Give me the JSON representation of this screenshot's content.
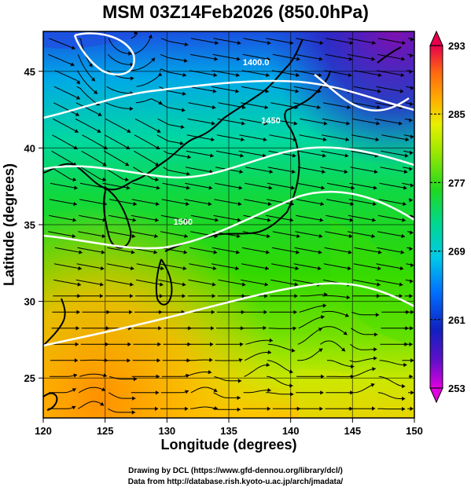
{
  "title": "MSM 03Z14Feb2026 (850.0hPa)",
  "xlabel": "Longitude (degrees)",
  "ylabel": "Latitude  (degrees)",
  "credits": {
    "line1": "Drawing by DCL (https://www.gfd-dennou.org/library/dcl/)",
    "line2": "Data from http://database.rish.kyoto-u.ac.jp/arch/jmadata/"
  },
  "chart_data": {
    "type": "heatmap",
    "title": "MSM 03Z14Feb2026 (850.0hPa)",
    "xlabel": "Longitude (degrees)",
    "ylabel": "Latitude  (degrees)",
    "xlim": [
      120,
      150
    ],
    "ylim": [
      22.4,
      47.6
    ],
    "x_ticks": [
      "120",
      "125",
      "130",
      "135",
      "140",
      "145",
      "150"
    ],
    "y_ticks": [
      "25",
      "30",
      "35",
      "40",
      "45"
    ],
    "colorbar": {
      "range": [
        253,
        293
      ],
      "labels": [
        "293",
        "285",
        "277",
        "269",
        "261",
        "253"
      ],
      "colors": [
        "#e8004c",
        "#ff4a1a",
        "#ff9a00",
        "#f0e000",
        "#5fe000",
        "#00d050",
        "#00d8d0",
        "#0080ff",
        "#1020c0",
        "#7010c0",
        "#e000e0"
      ]
    },
    "height_contours": [
      {
        "label": "1400.0",
        "label_lon": 137.2,
        "label_lat": 45.4
      },
      {
        "label": "1450",
        "label_lon": 138.4,
        "label_lat": 41.6
      },
      {
        "label": "1500",
        "label_lon": 131.3,
        "label_lat": 35.0
      }
    ],
    "grid": true
  }
}
